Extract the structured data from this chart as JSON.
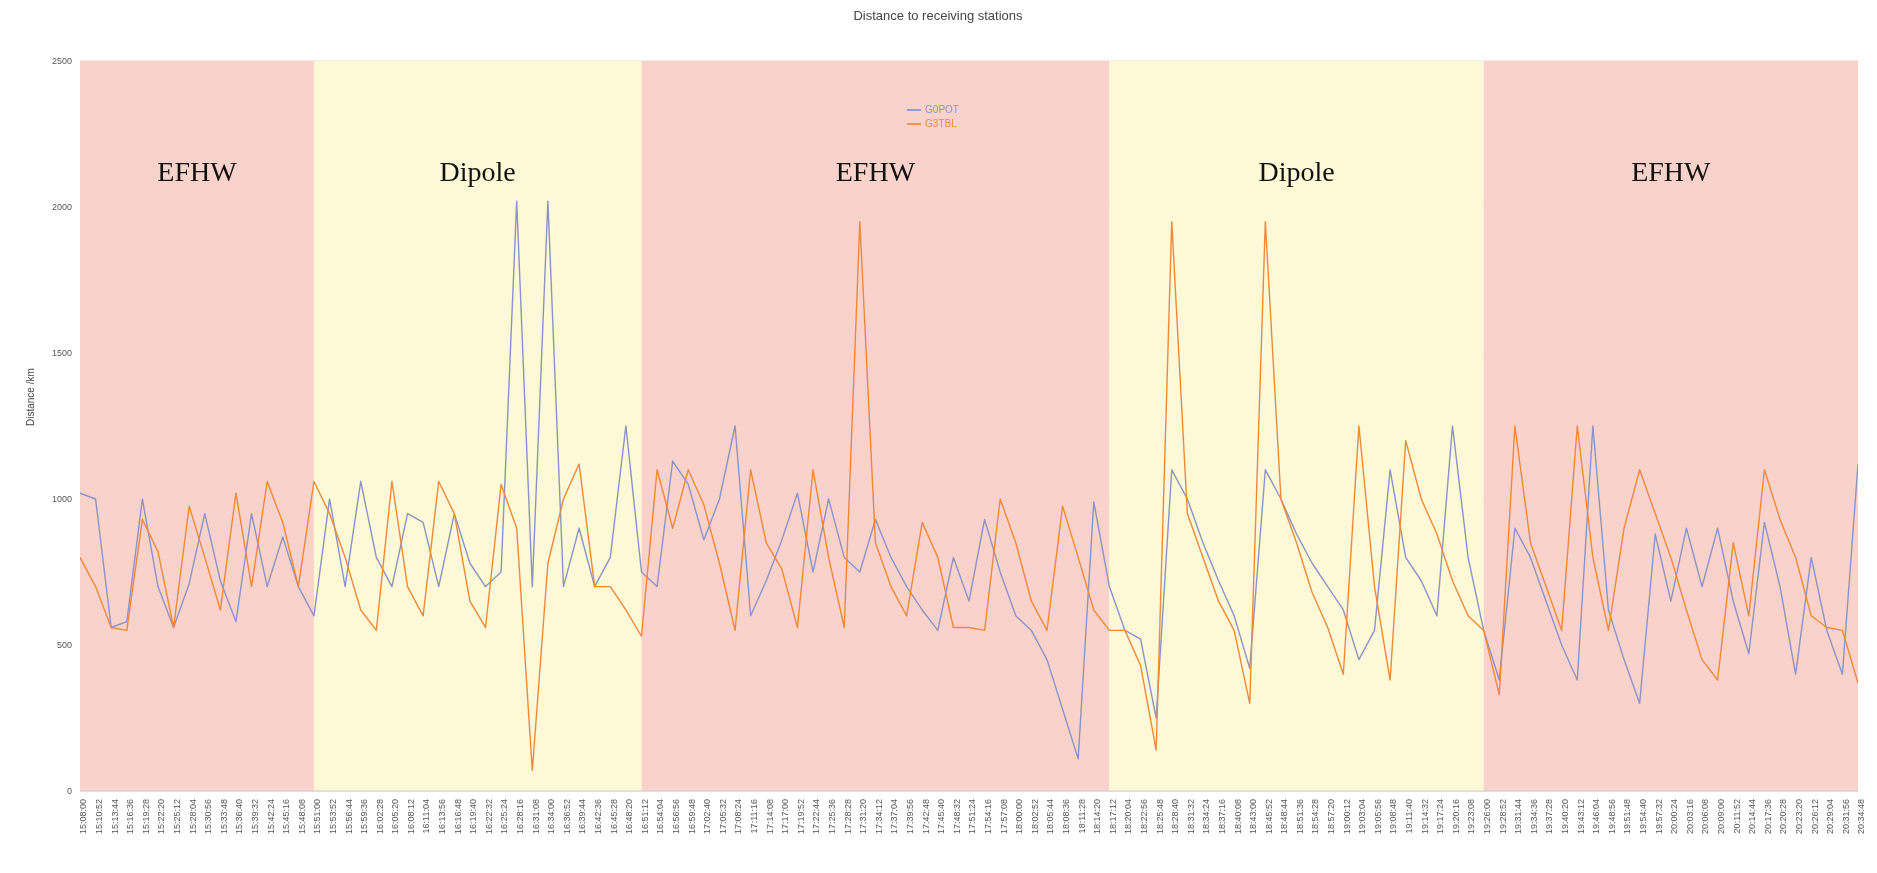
{
  "chart_data": {
    "type": "line",
    "title": "Distance to receiving stations",
    "ylabel": "Distance /km",
    "categories": [
      "15:08:00",
      "15:10:52",
      "15:13:44",
      "15:16:36",
      "15:19:28",
      "15:22:20",
      "15:25:12",
      "15:28:04",
      "15:30:56",
      "15:33:48",
      "15:36:40",
      "15:39:32",
      "15:42:24",
      "15:45:16",
      "15:48:08",
      "15:51:00",
      "15:53:52",
      "15:56:44",
      "15:59:36",
      "16:02:28",
      "16:05:20",
      "16:08:12",
      "16:11:04",
      "16:13:56",
      "16:16:48",
      "16:19:40",
      "16:22:32",
      "16:25:24",
      "16:28:16",
      "16:31:08",
      "16:34:00",
      "16:36:52",
      "16:39:44",
      "16:42:36",
      "16:45:28",
      "16:48:20",
      "16:51:12",
      "16:54:04",
      "16:56:56",
      "16:59:48",
      "17:02:40",
      "17:05:32",
      "17:08:24",
      "17:11:16",
      "17:14:08",
      "17:17:00",
      "17:19:52",
      "17:22:44",
      "17:25:36",
      "17:28:28",
      "17:31:20",
      "17:34:12",
      "17:37:04",
      "17:39:56",
      "17:42:48",
      "17:45:40",
      "17:48:32",
      "17:51:24",
      "17:54:16",
      "17:57:08",
      "18:00:00",
      "18:02:52",
      "18:05:44",
      "18:08:36",
      "18:11:28",
      "18:14:20",
      "18:17:12",
      "18:20:04",
      "18:22:56",
      "18:25:48",
      "18:28:40",
      "18:31:32",
      "18:34:24",
      "18:37:16",
      "18:40:08",
      "18:43:00",
      "18:45:52",
      "18:48:44",
      "18:51:36",
      "18:54:28",
      "18:57:20",
      "19:00:12",
      "19:03:04",
      "19:05:56",
      "19:08:48",
      "19:11:40",
      "19:14:32",
      "19:17:24",
      "19:20:16",
      "19:23:08",
      "19:26:00",
      "19:28:52",
      "19:31:44",
      "19:34:36",
      "19:37:28",
      "19:40:20",
      "19:43:12",
      "19:46:04",
      "19:48:56",
      "19:51:48",
      "19:54:40",
      "19:57:32",
      "20:00:24",
      "20:03:16",
      "20:06:08",
      "20:09:00",
      "20:11:52",
      "20:14:44",
      "20:17:36",
      "20:20:28",
      "20:23:20",
      "20:26:12",
      "20:29:04",
      "20:31:56",
      "20:34:48"
    ],
    "series": [
      {
        "name": "G0POT",
        "color": "#8a94c6",
        "values": [
          1020,
          1000,
          560,
          580,
          1000,
          700,
          560,
          710,
          950,
          720,
          580,
          950,
          700,
          870,
          700,
          600,
          1000,
          700,
          1060,
          800,
          700,
          950,
          920,
          700,
          950,
          780,
          700,
          750,
          2020,
          700,
          2020,
          700,
          900,
          700,
          800,
          1250,
          750,
          700,
          1130,
          1050,
          860,
          1000,
          1250,
          600,
          720,
          860,
          1020,
          750,
          1000,
          800,
          750,
          930,
          800,
          700,
          620,
          550,
          800,
          650,
          930,
          750,
          600,
          550,
          450,
          280,
          110,
          990,
          700,
          550,
          520,
          250,
          1100,
          1000,
          850,
          720,
          600,
          420,
          1100,
          1000,
          880,
          780,
          700,
          620,
          450,
          550,
          1100,
          800,
          720,
          600,
          1250,
          800,
          550,
          380,
          900,
          800,
          650,
          500,
          380,
          1250,
          620,
          450,
          300,
          880,
          650,
          900,
          700,
          900,
          650,
          470,
          920,
          700,
          400,
          800,
          550,
          400,
          1120
        ]
      },
      {
        "name": "G3TBL",
        "color": "#f0883a",
        "values": [
          800,
          700,
          560,
          550,
          930,
          820,
          560,
          975,
          800,
          620,
          1020,
          700,
          1060,
          920,
          700,
          1060,
          950,
          800,
          620,
          550,
          1060,
          700,
          600,
          1060,
          950,
          650,
          560,
          1050,
          900,
          70,
          780,
          1000,
          1120,
          700,
          700,
          620,
          530,
          1100,
          900,
          1100,
          980,
          780,
          550,
          1100,
          850,
          760,
          560,
          1100,
          800,
          560,
          1950,
          850,
          700,
          600,
          920,
          800,
          560,
          560,
          550,
          1000,
          850,
          650,
          550,
          975,
          800,
          620,
          550,
          550,
          430,
          140,
          1950,
          950,
          800,
          650,
          550,
          300,
          1950,
          1000,
          850,
          680,
          560,
          400,
          1250,
          700,
          380,
          1200,
          1000,
          880,
          720,
          600,
          550,
          330,
          1250,
          850,
          700,
          550,
          1250,
          800,
          550,
          900,
          1100,
          950,
          800,
          620,
          450,
          380,
          850,
          600,
          1100,
          930,
          800,
          600,
          560,
          550,
          370
        ]
      }
    ],
    "ylim": [
      0,
      2500
    ],
    "yticks": [
      0,
      500,
      1000,
      1500,
      2000,
      2500
    ],
    "grid": "y",
    "legend": "top",
    "marker": "none",
    "line_style": "solid",
    "bands": [
      {
        "axis": "x",
        "from": "15:08:00",
        "to": "15:51:00",
        "label": "EFHW",
        "color": "#f9d3cb"
      },
      {
        "axis": "x",
        "from": "15:51:00",
        "to": "16:51:12",
        "label": "Dipole",
        "color": "#fdf8d5"
      },
      {
        "axis": "x",
        "from": "16:51:12",
        "to": "18:17:12",
        "label": "EFHW",
        "color": "#f9d3cb"
      },
      {
        "axis": "x",
        "from": "18:17:12",
        "to": "19:26:00",
        "label": "Dipole",
        "color": "#fdf8d5"
      },
      {
        "axis": "x",
        "from": "19:26:00",
        "to": "20:34:48",
        "label": "EFHW",
        "color": "#f9d3cb"
      }
    ]
  }
}
